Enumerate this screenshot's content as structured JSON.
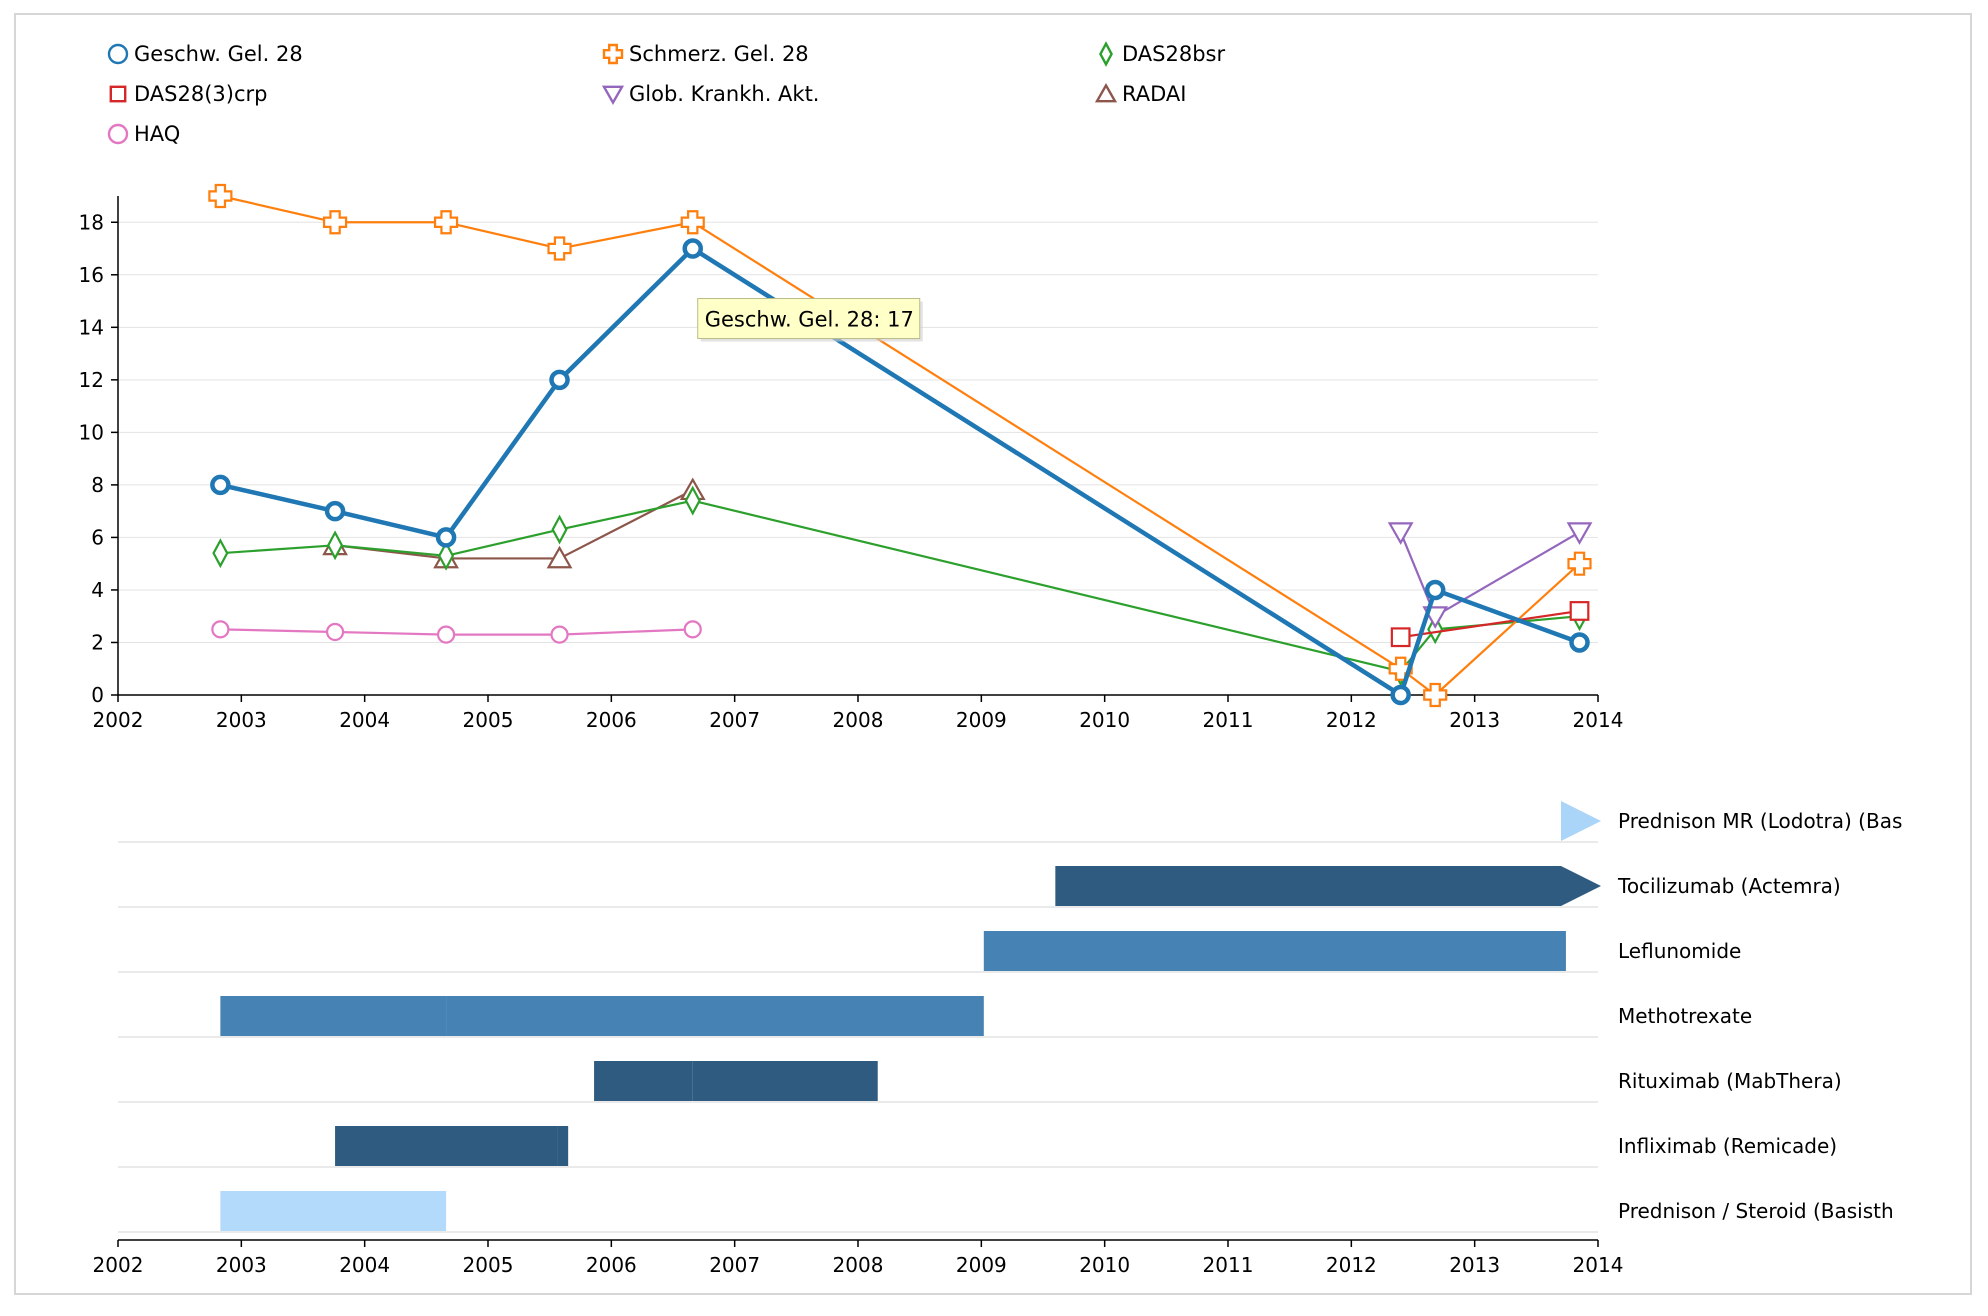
{
  "chart_data": [
    {
      "type": "line",
      "title": "",
      "xlabel": "",
      "ylabel": "",
      "xlim": [
        2002,
        2014
      ],
      "ylim": [
        0,
        19
      ],
      "x_ticks": [
        "2002",
        "2003",
        "2004",
        "2005",
        "2006",
        "2007",
        "2008",
        "2009",
        "2010",
        "2011",
        "2012",
        "2013",
        "2014"
      ],
      "y_ticks": [
        "0",
        "2",
        "4",
        "6",
        "8",
        "10",
        "12",
        "14",
        "16",
        "18"
      ],
      "grid": "horizontal",
      "legend_position": "top",
      "series": [
        {
          "name": "Geschw. Gel. 28",
          "color": "#1f77b4",
          "marker": "circle",
          "x": [
            2002.83,
            2003.76,
            2004.66,
            2005.58,
            2006.66,
            2012.4,
            2012.68,
            2013.85
          ],
          "y": [
            8,
            7,
            6,
            12,
            17,
            0,
            4,
            2
          ]
        },
        {
          "name": "Schmerz. Gel. 28",
          "color": "#ff7f0e",
          "marker": "cross",
          "x": [
            2002.83,
            2003.76,
            2004.66,
            2005.58,
            2006.66,
            2012.4,
            2012.68,
            2013.85
          ],
          "y": [
            19,
            18,
            18,
            17,
            18,
            1,
            0,
            5
          ]
        },
        {
          "name": "DAS28bsr",
          "color": "#2ca02c",
          "marker": "diamond",
          "x": [
            2002.83,
            2003.76,
            2004.66,
            2005.58,
            2006.66,
            2012.4,
            2012.68,
            2013.85
          ],
          "y": [
            5.4,
            5.7,
            5.3,
            6.3,
            7.4,
            0.9,
            2.5,
            3.0
          ]
        },
        {
          "name": "DAS28(3)crp",
          "color": "#d62728",
          "marker": "square",
          "x": [
            2012.4,
            2013.85
          ],
          "y": [
            2.2,
            3.2
          ]
        },
        {
          "name": "Glob. Krankh. Akt.",
          "color": "#9467bd",
          "marker": "triangle-down",
          "x": [
            2012.4,
            2012.68,
            2013.85
          ],
          "y": [
            6.2,
            3.0,
            6.2
          ]
        },
        {
          "name": "RADAI",
          "color": "#8c564b",
          "marker": "triangle-up",
          "x": [
            2003.76,
            2004.66,
            2005.58,
            2006.66
          ],
          "y": [
            5.7,
            5.2,
            5.2,
            7.8
          ]
        },
        {
          "name": "HAQ",
          "color": "#e377c2",
          "marker": "circle",
          "x": [
            2002.83,
            2003.76,
            2004.66,
            2005.58,
            2006.66
          ],
          "y": [
            2.5,
            2.4,
            2.3,
            2.3,
            2.5
          ]
        }
      ],
      "tooltip": "Geschw. Gel. 28: 17"
    },
    {
      "type": "bar",
      "title": "",
      "xlabel": "",
      "xlim": [
        2002,
        2014
      ],
      "x_ticks": [
        "2002",
        "2003",
        "2004",
        "2005",
        "2006",
        "2007",
        "2008",
        "2009",
        "2010",
        "2011",
        "2012",
        "2013",
        "2014"
      ],
      "medications": [
        {
          "name": "Prednison MR (Lodotra) (Bas",
          "color": "#aad4f8",
          "segments": [],
          "ongoing_from": 2013.7
        },
        {
          "name": "Tocilizumab (Actemra)",
          "color": "#2f5b80",
          "segments": [
            [
              2009.6,
              2013.7
            ]
          ],
          "ongoing": true
        },
        {
          "name": "Leflunomide",
          "color": "#4682b4",
          "segments": [
            [
              2009.02,
              2013.74
            ]
          ]
        },
        {
          "name": "Methotrexate",
          "color": "#4682b4",
          "segments": [
            [
              2002.83,
              2004.66
            ],
            [
              2004.66,
              2009.02
            ]
          ]
        },
        {
          "name": "Rituximab (MabThera)",
          "color": "#2f5b80",
          "segments": [
            [
              2005.86,
              2006.66
            ],
            [
              2006.66,
              2008.16
            ]
          ]
        },
        {
          "name": "Infliximab (Remicade)",
          "color": "#2f5b80",
          "segments": [
            [
              2003.76,
              2005.56
            ],
            [
              2005.56,
              2005.65
            ]
          ]
        },
        {
          "name": "Prednison / Steroid (Basisth",
          "color": "#b3dafa",
          "segments": [
            [
              2002.83,
              2004.66
            ]
          ]
        }
      ]
    }
  ]
}
